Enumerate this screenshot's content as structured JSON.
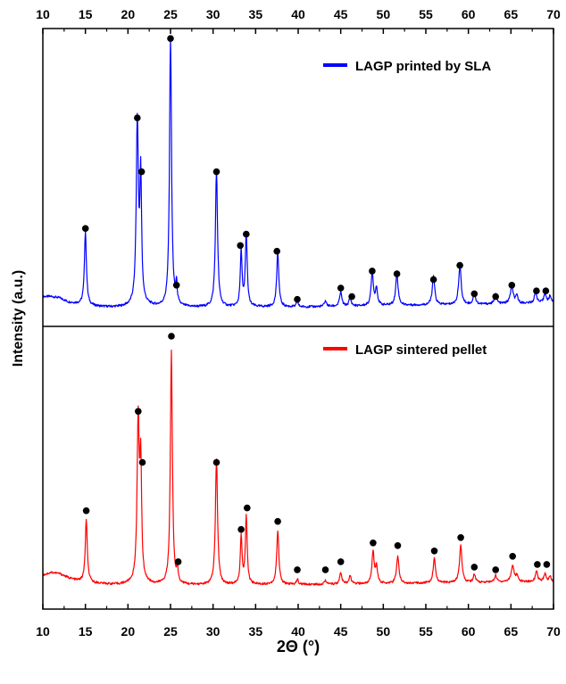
{
  "chart_data": [
    {
      "type": "line",
      "panel": "top",
      "title": "",
      "xlabel": "2Θ (°)",
      "ylabel": "Intensity (a.u.)",
      "xlim": [
        10,
        70
      ],
      "ylim": [
        0,
        100
      ],
      "x_ticks": [
        10,
        15,
        20,
        25,
        30,
        35,
        40,
        45,
        50,
        55,
        60,
        65,
        70
      ],
      "x_axis_position": "top",
      "legend": "top-right",
      "series": [
        {
          "name": "LAGP printed by SLA",
          "color": "#0000ff",
          "baseline": [
            [
              10,
              8
            ],
            [
              11,
              8
            ],
            [
              12,
              7.5
            ],
            [
              13,
              6
            ],
            [
              14,
              5.5
            ],
            [
              15,
              5
            ],
            [
              16,
              4.6
            ],
            [
              17,
              4.4
            ],
            [
              18,
              4.3
            ],
            [
              19,
              4.3
            ],
            [
              20,
              4.5
            ],
            [
              21,
              5
            ],
            [
              22,
              5
            ],
            [
              23,
              4.5
            ],
            [
              24,
              4.3
            ],
            [
              26,
              4.2
            ],
            [
              28,
              4.2
            ],
            [
              30,
              4.2
            ],
            [
              35,
              4.3
            ],
            [
              40,
              4.3
            ],
            [
              45,
              4.5
            ],
            [
              50,
              4.8
            ],
            [
              55,
              5
            ],
            [
              60,
              5.2
            ],
            [
              65,
              5.5
            ],
            [
              70,
              5.8
            ]
          ],
          "peaks": [
            {
              "x": 15.0,
              "y": 26,
              "w": 0.14
            },
            {
              "x": 21.1,
              "y": 64,
              "w": 0.15
            },
            {
              "x": 21.5,
              "y": 44,
              "w": 0.12
            },
            {
              "x": 25.0,
              "y": 95,
              "w": 0.14
            },
            {
              "x": 25.7,
              "y": 7,
              "w": 0.1
            },
            {
              "x": 30.4,
              "y": 48,
              "w": 0.15
            },
            {
              "x": 33.3,
              "y": 20,
              "w": 0.12
            },
            {
              "x": 33.9,
              "y": 26,
              "w": 0.13
            },
            {
              "x": 37.6,
              "y": 19,
              "w": 0.15
            },
            {
              "x": 39.9,
              "y": 2,
              "w": 0.12
            },
            {
              "x": 43.2,
              "y": 2,
              "w": 0.15
            },
            {
              "x": 45.0,
              "y": 5,
              "w": 0.16
            },
            {
              "x": 46.1,
              "y": 3,
              "w": 0.15
            },
            {
              "x": 48.7,
              "y": 12,
              "w": 0.15
            },
            {
              "x": 49.2,
              "y": 6,
              "w": 0.15
            },
            {
              "x": 51.6,
              "y": 11,
              "w": 0.17
            },
            {
              "x": 55.9,
              "y": 10,
              "w": 0.17
            },
            {
              "x": 59.0,
              "y": 14,
              "w": 0.17
            },
            {
              "x": 60.7,
              "y": 4,
              "w": 0.15
            },
            {
              "x": 63.2,
              "y": 3.5,
              "w": 0.15
            },
            {
              "x": 65.1,
              "y": 6,
              "w": 0.2
            },
            {
              "x": 65.7,
              "y": 2.5,
              "w": 0.15
            },
            {
              "x": 67.9,
              "y": 4,
              "w": 0.16
            },
            {
              "x": 69.0,
              "y": 3.5,
              "w": 0.15
            },
            {
              "x": 69.6,
              "y": 2.5,
              "w": 0.15
            }
          ]
        }
      ],
      "markers": [
        {
          "x": 15.0,
          "y": 32
        },
        {
          "x": 21.1,
          "y": 71
        },
        {
          "x": 21.6,
          "y": 52
        },
        {
          "x": 25.0,
          "y": 99
        },
        {
          "x": 25.7,
          "y": 12
        },
        {
          "x": 30.4,
          "y": 52
        },
        {
          "x": 33.2,
          "y": 26
        },
        {
          "x": 33.9,
          "y": 30
        },
        {
          "x": 37.5,
          "y": 24
        },
        {
          "x": 39.9,
          "y": 7
        },
        {
          "x": 45.0,
          "y": 11
        },
        {
          "x": 46.3,
          "y": 8
        },
        {
          "x": 48.7,
          "y": 17
        },
        {
          "x": 51.6,
          "y": 16
        },
        {
          "x": 55.9,
          "y": 14
        },
        {
          "x": 59.0,
          "y": 19
        },
        {
          "x": 60.7,
          "y": 9
        },
        {
          "x": 63.2,
          "y": 8
        },
        {
          "x": 65.1,
          "y": 12
        },
        {
          "x": 68.0,
          "y": 10
        },
        {
          "x": 69.1,
          "y": 10
        }
      ]
    },
    {
      "type": "line",
      "panel": "bottom",
      "title": "",
      "xlabel": "2Θ (°)",
      "ylabel": "Intensity (a.u.)",
      "xlim": [
        10,
        70
      ],
      "ylim": [
        0,
        100
      ],
      "x_ticks": [
        10,
        15,
        20,
        25,
        30,
        35,
        40,
        45,
        50,
        55,
        60,
        65,
        70
      ],
      "x_axis_position": "bottom",
      "legend": "top-right",
      "series": [
        {
          "name": "LAGP sintered pellet",
          "color": "#ff0000",
          "baseline": [
            [
              10,
              10
            ],
            [
              11,
              11
            ],
            [
              12,
              10.5
            ],
            [
              13,
              9
            ],
            [
              14,
              8
            ],
            [
              15,
              7.5
            ],
            [
              16,
              7
            ],
            [
              17,
              6.8
            ],
            [
              18,
              6.6
            ],
            [
              19,
              6.5
            ],
            [
              20,
              6.8
            ],
            [
              21,
              7
            ],
            [
              22,
              7
            ],
            [
              23,
              6.5
            ],
            [
              24,
              6.5
            ],
            [
              26,
              6.3
            ],
            [
              28,
              6.3
            ],
            [
              30,
              6.3
            ],
            [
              35,
              6.5
            ],
            [
              40,
              6.5
            ],
            [
              45,
              6.6
            ],
            [
              50,
              6.8
            ],
            [
              55,
              7
            ],
            [
              60,
              7.2
            ],
            [
              65,
              7.5
            ],
            [
              70,
              7.5
            ]
          ],
          "peaks": [
            {
              "x": 15.1,
              "y": 23,
              "w": 0.14
            },
            {
              "x": 21.2,
              "y": 60,
              "w": 0.15
            },
            {
              "x": 21.5,
              "y": 42,
              "w": 0.12
            },
            {
              "x": 25.1,
              "y": 87,
              "w": 0.14
            },
            {
              "x": 25.8,
              "y": 5,
              "w": 0.1
            },
            {
              "x": 30.4,
              "y": 47,
              "w": 0.15
            },
            {
              "x": 33.3,
              "y": 18,
              "w": 0.12
            },
            {
              "x": 33.9,
              "y": 25,
              "w": 0.13
            },
            {
              "x": 37.6,
              "y": 20,
              "w": 0.15
            },
            {
              "x": 39.9,
              "y": 2,
              "w": 0.12
            },
            {
              "x": 43.2,
              "y": 1.5,
              "w": 0.15
            },
            {
              "x": 45.0,
              "y": 4,
              "w": 0.16
            },
            {
              "x": 46.1,
              "y": 3,
              "w": 0.15
            },
            {
              "x": 48.8,
              "y": 12,
              "w": 0.15
            },
            {
              "x": 49.2,
              "y": 6,
              "w": 0.15
            },
            {
              "x": 51.7,
              "y": 10,
              "w": 0.17
            },
            {
              "x": 56.0,
              "y": 9,
              "w": 0.17
            },
            {
              "x": 59.1,
              "y": 14,
              "w": 0.17
            },
            {
              "x": 60.7,
              "y": 3,
              "w": 0.15
            },
            {
              "x": 63.2,
              "y": 2.5,
              "w": 0.15
            },
            {
              "x": 65.2,
              "y": 6,
              "w": 0.2
            },
            {
              "x": 65.7,
              "y": 2,
              "w": 0.15
            },
            {
              "x": 68.0,
              "y": 4,
              "w": 0.16
            },
            {
              "x": 69.0,
              "y": 3,
              "w": 0.15
            },
            {
              "x": 69.6,
              "y": 2,
              "w": 0.15
            }
          ]
        }
      ],
      "markers": [
        {
          "x": 15.1,
          "y": 34
        },
        {
          "x": 21.2,
          "y": 71
        },
        {
          "x": 21.7,
          "y": 52
        },
        {
          "x": 25.1,
          "y": 99
        },
        {
          "x": 25.9,
          "y": 15
        },
        {
          "x": 30.4,
          "y": 52
        },
        {
          "x": 33.3,
          "y": 27
        },
        {
          "x": 34.0,
          "y": 35
        },
        {
          "x": 37.6,
          "y": 30
        },
        {
          "x": 39.9,
          "y": 12
        },
        {
          "x": 43.2,
          "y": 12
        },
        {
          "x": 45.0,
          "y": 15
        },
        {
          "x": 48.8,
          "y": 22
        },
        {
          "x": 51.7,
          "y": 21
        },
        {
          "x": 56.0,
          "y": 19
        },
        {
          "x": 59.1,
          "y": 24
        },
        {
          "x": 60.7,
          "y": 13
        },
        {
          "x": 63.2,
          "y": 12
        },
        {
          "x": 65.2,
          "y": 17
        },
        {
          "x": 68.1,
          "y": 14
        },
        {
          "x": 69.2,
          "y": 14
        }
      ]
    }
  ]
}
